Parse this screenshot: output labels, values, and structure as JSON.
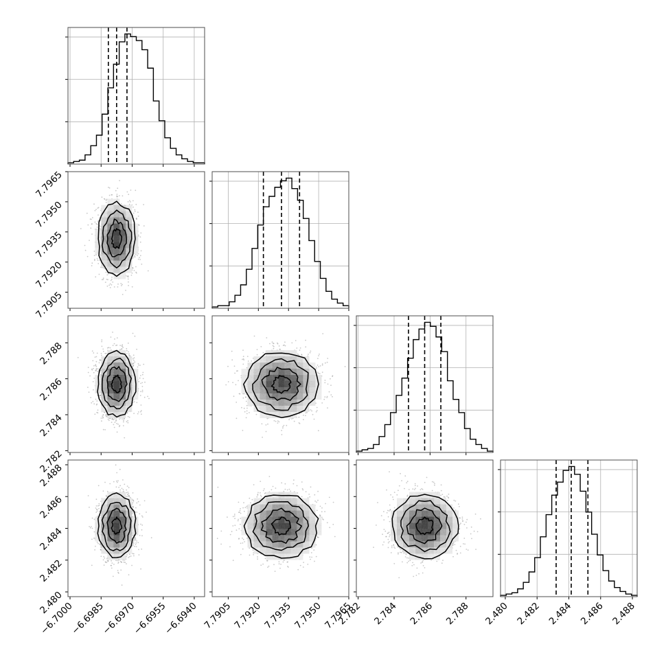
{
  "chart_data": {
    "type": "corner",
    "parameter_count": 4,
    "parameters": [
      {
        "xticks": [
          "−6.7000",
          "−6.6985",
          "−6.6970",
          "−6.6955",
          "−6.6940"
        ],
        "xtick_values": [
          -6.7,
          -6.6985,
          -6.697,
          -6.6955,
          -6.694
        ],
        "range": [
          -6.7001,
          -6.6935
        ],
        "quantiles_16_50_84": [
          -6.69815,
          -6.69775,
          -6.69725
        ],
        "hist_peak_count_ticks": 3
      },
      {
        "xticks": [
          "7.7905",
          "7.7920",
          "7.7935",
          "7.7950",
          "7.7965"
        ],
        "xtick_values": [
          7.7905,
          7.792,
          7.7935,
          7.795,
          7.7965
        ],
        "yticks": [
          "7.7905",
          "7.7920",
          "7.7935",
          "7.7950",
          "7.7965"
        ],
        "range": [
          7.7897,
          7.7965
        ],
        "quantiles_16_50_84": [
          7.79225,
          7.79315,
          7.79405
        ]
      },
      {
        "xticks": [
          "2.782",
          "2.784",
          "2.786",
          "2.788"
        ],
        "xtick_values": [
          2.782,
          2.784,
          2.786,
          2.788
        ],
        "yticks": [
          "2.782",
          "2.784",
          "2.786",
          "2.788"
        ],
        "range": [
          2.7819,
          2.7895
        ],
        "quantiles_16_50_84": [
          2.7848,
          2.7857,
          2.7866
        ]
      },
      {
        "xticks": [
          "2.480",
          "2.482",
          "2.484",
          "2.486",
          "2.488"
        ],
        "xtick_values": [
          2.48,
          2.482,
          2.484,
          2.486,
          2.488
        ],
        "yticks": [
          "2.480",
          "2.482",
          "2.484",
          "2.486",
          "2.488"
        ],
        "range": [
          2.4797,
          2.4883
        ],
        "quantiles_16_50_84": [
          2.4832,
          2.48415,
          2.4852
        ]
      }
    ],
    "histograms": [
      [
        0.01,
        0.02,
        0.03,
        0.07,
        0.14,
        0.22,
        0.38,
        0.58,
        0.76,
        0.93,
        0.99,
        0.97,
        0.94,
        0.87,
        0.73,
        0.48,
        0.33,
        0.2,
        0.12,
        0.07,
        0.04,
        0.02,
        0.01,
        0.01
      ],
      [
        0.01,
        0.02,
        0.02,
        0.05,
        0.1,
        0.18,
        0.3,
        0.46,
        0.64,
        0.78,
        0.86,
        0.93,
        0.98,
        1.0,
        0.92,
        0.83,
        0.69,
        0.52,
        0.36,
        0.23,
        0.13,
        0.07,
        0.04,
        0.02
      ],
      [
        0.01,
        0.02,
        0.03,
        0.06,
        0.12,
        0.21,
        0.3,
        0.43,
        0.56,
        0.71,
        0.85,
        0.93,
        0.98,
        0.95,
        0.87,
        0.76,
        0.54,
        0.4,
        0.3,
        0.18,
        0.1,
        0.06,
        0.03,
        0.01
      ],
      [
        0.01,
        0.02,
        0.03,
        0.06,
        0.11,
        0.19,
        0.3,
        0.46,
        0.63,
        0.78,
        0.88,
        0.97,
        1.0,
        0.94,
        0.81,
        0.65,
        0.48,
        0.32,
        0.2,
        0.12,
        0.07,
        0.04,
        0.02,
        0.01
      ]
    ],
    "hist_gridlines_fraction": [
      0.31,
      0.62,
      0.93
    ],
    "contour_levels_sigma": [
      0.5,
      1.0,
      1.5,
      2.0
    ],
    "scatter_points_per_panel": 1800,
    "grid": true,
    "colors": {
      "line": "#000000",
      "grid": "#b0b0b0",
      "points": "#9a9a9a",
      "density_dark": "#202020",
      "frame": "#4d4d4d"
    }
  }
}
